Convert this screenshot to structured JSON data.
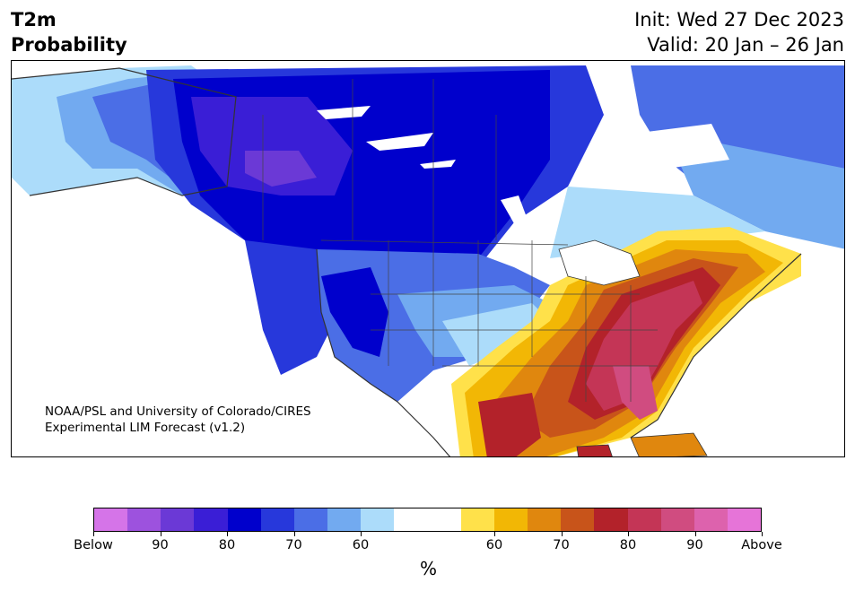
{
  "header": {
    "title_line1": "T2m",
    "title_line2": "Probability",
    "init": "Init: Wed 27 Dec 2023",
    "valid": "Valid: 20 Jan – 26 Jan"
  },
  "map": {
    "credit_line1": "NOAA/PSL and University of Colorado/CIRES",
    "credit_line2": "Experimental LIM Forecast (v1.2)"
  },
  "colorbar": {
    "colors": [
      "#d574e8",
      "#9d52de",
      "#6b39d6",
      "#3a1ed6",
      "#0000cc",
      "#2738db",
      "#4b6ee6",
      "#72aaf0",
      "#acdcfa",
      "#ffffff",
      "#ffffff",
      "#ffe14a",
      "#f2b705",
      "#e0870e",
      "#c8541a",
      "#b3222a",
      "#c43556",
      "#d04c80",
      "#dd62ad",
      "#e674d8"
    ],
    "labels": [
      "Below",
      "90",
      "80",
      "70",
      "60",
      "60",
      "70",
      "80",
      "90",
      "Above"
    ],
    "unit": "%"
  }
}
